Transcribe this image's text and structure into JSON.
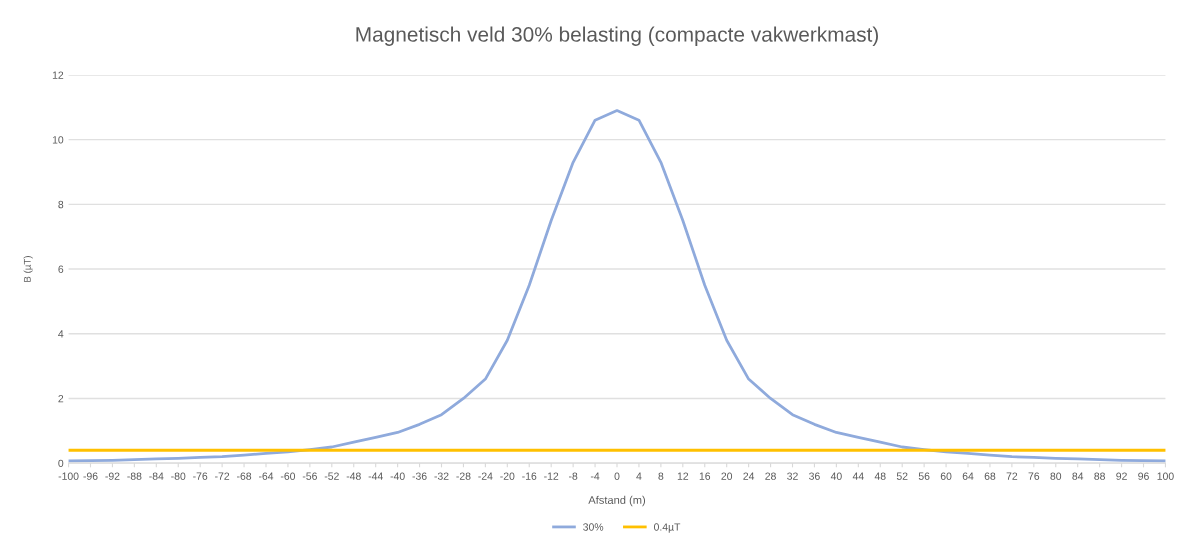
{
  "chart_data": {
    "type": "line",
    "title": "Magnetisch veld 30% belasting (compacte vakwerkmast)",
    "xlabel": "Afstand (m)",
    "ylabel": "B (µT)",
    "x": [
      -100,
      -96,
      -92,
      -88,
      -84,
      -80,
      -76,
      -72,
      -68,
      -64,
      -60,
      -56,
      -52,
      -48,
      -44,
      -40,
      -36,
      -32,
      -28,
      -24,
      -20,
      -16,
      -12,
      -8,
      -4,
      0,
      4,
      8,
      12,
      16,
      20,
      24,
      28,
      32,
      36,
      40,
      44,
      48,
      52,
      56,
      60,
      64,
      68,
      72,
      76,
      80,
      84,
      88,
      92,
      96,
      100
    ],
    "series": [
      {
        "name": "30%",
        "color": "#8faadc",
        "values": [
          0.07,
          0.08,
          0.09,
          0.11,
          0.13,
          0.15,
          0.18,
          0.2,
          0.25,
          0.3,
          0.35,
          0.42,
          0.5,
          0.65,
          0.8,
          0.95,
          1.2,
          1.5,
          2.0,
          2.6,
          3.8,
          5.5,
          7.5,
          9.3,
          10.6,
          10.9,
          10.6,
          9.3,
          7.5,
          5.5,
          3.8,
          2.6,
          2.0,
          1.5,
          1.2,
          0.95,
          0.8,
          0.65,
          0.5,
          0.42,
          0.35,
          0.3,
          0.25,
          0.2,
          0.18,
          0.15,
          0.13,
          0.11,
          0.09,
          0.08,
          0.07
        ]
      },
      {
        "name": "0.4µT",
        "color": "#ffc000",
        "values": [
          0.4,
          0.4,
          0.4,
          0.4,
          0.4,
          0.4,
          0.4,
          0.4,
          0.4,
          0.4,
          0.4,
          0.4,
          0.4,
          0.4,
          0.4,
          0.4,
          0.4,
          0.4,
          0.4,
          0.4,
          0.4,
          0.4,
          0.4,
          0.4,
          0.4,
          0.4,
          0.4,
          0.4,
          0.4,
          0.4,
          0.4,
          0.4,
          0.4,
          0.4,
          0.4,
          0.4,
          0.4,
          0.4,
          0.4,
          0.4,
          0.4,
          0.4,
          0.4,
          0.4,
          0.4,
          0.4,
          0.4,
          0.4,
          0.4,
          0.4,
          0.4
        ]
      }
    ],
    "xlim": [
      -100,
      100
    ],
    "xticks": [
      -100,
      -96,
      -92,
      -88,
      -84,
      -80,
      -76,
      -72,
      -68,
      -64,
      -60,
      -56,
      -52,
      -48,
      -44,
      -40,
      -36,
      -32,
      -28,
      -24,
      -20,
      -16,
      -12,
      -8,
      -4,
      0,
      4,
      8,
      12,
      16,
      20,
      24,
      28,
      32,
      36,
      40,
      44,
      48,
      52,
      56,
      60,
      64,
      68,
      72,
      76,
      80,
      84,
      88,
      92,
      96,
      100
    ],
    "ylim": [
      0,
      12
    ],
    "yticks": [
      0,
      2,
      4,
      6,
      8,
      10,
      12
    ],
    "grid": "y",
    "legend": "bottom",
    "marker": "none",
    "line_style": "solid"
  }
}
